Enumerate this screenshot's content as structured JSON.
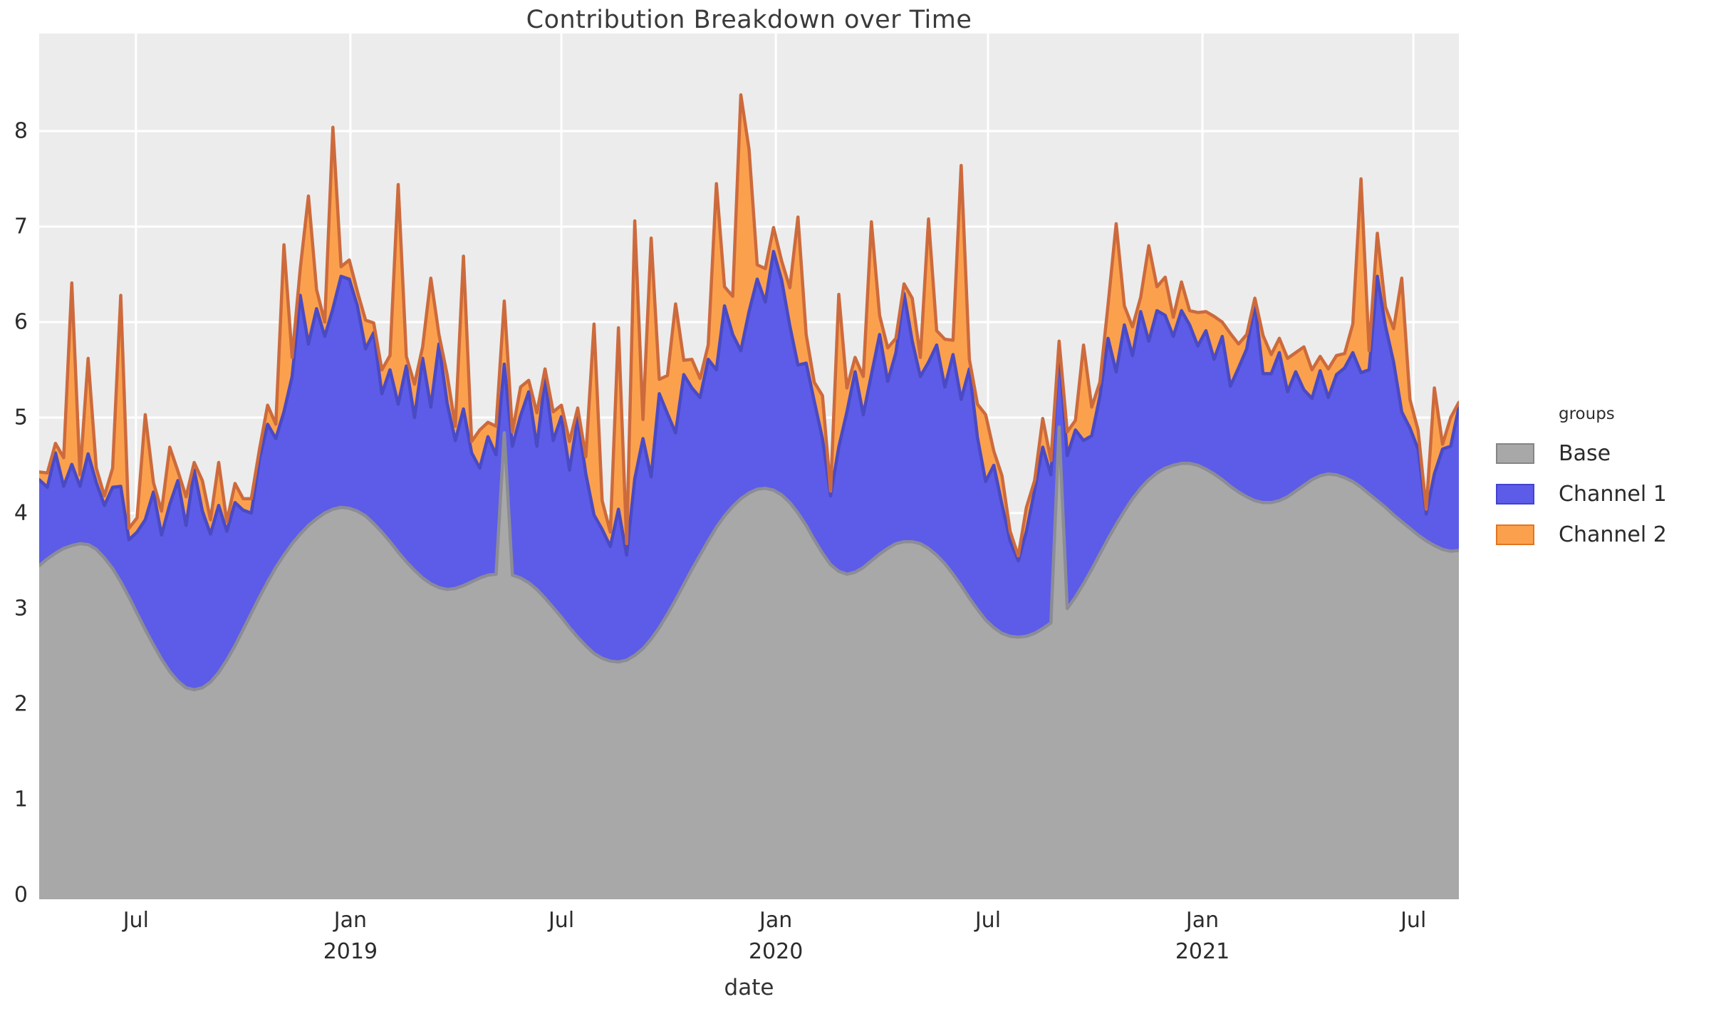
{
  "page": {
    "title": "Contribution Breakdown over Time",
    "x_axis_title": "date"
  },
  "legend": {
    "title": "groups",
    "items": [
      {
        "label": "Base",
        "fill": "#a8a8a8",
        "border": "#858585"
      },
      {
        "label": "Channel 1",
        "fill": "#5c5ce8",
        "border": "#4343cf"
      },
      {
        "label": "Channel 2",
        "fill": "#fba14e",
        "border": "#e2751f"
      }
    ]
  },
  "axes": {
    "y_ticks": [
      "0",
      "1",
      "2",
      "3",
      "4",
      "5",
      "6",
      "7",
      "8"
    ],
    "x_ticks": [
      {
        "label": "Jul",
        "year": "",
        "date": "2018-07-01"
      },
      {
        "label": "Jan",
        "year": "2019",
        "date": "2019-01-01"
      },
      {
        "label": "Jul",
        "year": "",
        "date": "2019-07-01"
      },
      {
        "label": "Jan",
        "year": "2020",
        "date": "2020-01-01"
      },
      {
        "label": "Jul",
        "year": "",
        "date": "2020-07-01"
      },
      {
        "label": "Jan",
        "year": "2021",
        "date": "2021-01-01"
      },
      {
        "label": "Jul",
        "year": "",
        "date": "2021-07-01"
      }
    ]
  },
  "style": {
    "panel_bg": "#ececec",
    "grid_color": "#ffffff",
    "tick_text_color": "#2c2c2c",
    "line_colors": {
      "base": "#8c8c96",
      "channel1": "#4a4ac4",
      "channel2": "#cd6a3c"
    }
  },
  "chart_data": {
    "type": "area",
    "stacked": true,
    "title": "Contribution Breakdown over Time",
    "xlabel": "date",
    "ylabel": "",
    "ylim": [
      0,
      9.0
    ],
    "grid": true,
    "legend_position": "right",
    "x_start": "2018-04-09",
    "x_freq_days": 7,
    "n_points": 175,
    "x_end": "2021-08-09",
    "series": [
      {
        "name": "Base",
        "fill": "#a8a8a8",
        "stroke": "#8c8c96",
        "values": [
          3.45,
          3.52,
          3.58,
          3.63,
          3.66,
          3.68,
          3.67,
          3.62,
          3.53,
          3.42,
          3.28,
          3.12,
          2.95,
          2.78,
          2.62,
          2.47,
          2.34,
          2.24,
          2.17,
          2.15,
          2.17,
          2.23,
          2.33,
          2.46,
          2.61,
          2.78,
          2.95,
          3.12,
          3.28,
          3.43,
          3.56,
          3.68,
          3.78,
          3.87,
          3.94,
          4.0,
          4.04,
          4.06,
          4.05,
          4.02,
          3.97,
          3.89,
          3.8,
          3.7,
          3.59,
          3.49,
          3.4,
          3.32,
          3.26,
          3.22,
          3.2,
          3.21,
          3.24,
          3.28,
          3.32,
          3.35,
          3.36,
          4.84,
          3.35,
          3.32,
          3.27,
          3.2,
          3.11,
          3.01,
          2.91,
          2.8,
          2.7,
          2.61,
          2.53,
          2.48,
          2.45,
          2.44,
          2.46,
          2.51,
          2.58,
          2.68,
          2.8,
          2.94,
          3.09,
          3.25,
          3.41,
          3.56,
          3.71,
          3.85,
          3.97,
          4.07,
          4.15,
          4.21,
          4.25,
          4.26,
          4.24,
          4.19,
          4.11,
          4.0,
          3.87,
          3.72,
          3.58,
          3.46,
          3.39,
          3.36,
          3.38,
          3.43,
          3.5,
          3.57,
          3.63,
          3.68,
          3.7,
          3.7,
          3.68,
          3.63,
          3.56,
          3.47,
          3.36,
          3.24,
          3.11,
          2.99,
          2.88,
          2.8,
          2.74,
          2.71,
          2.7,
          2.71,
          2.74,
          2.79,
          2.85,
          4.9,
          3.0,
          3.12,
          3.26,
          3.41,
          3.57,
          3.73,
          3.88,
          4.02,
          4.15,
          4.26,
          4.35,
          4.42,
          4.47,
          4.5,
          4.52,
          4.52,
          4.5,
          4.46,
          4.41,
          4.35,
          4.28,
          4.22,
          4.17,
          4.13,
          4.11,
          4.11,
          4.13,
          4.17,
          4.23,
          4.29,
          4.35,
          4.39,
          4.41,
          4.4,
          4.37,
          4.33,
          4.27,
          4.2,
          4.13,
          4.06,
          3.98,
          3.91,
          3.84,
          3.77,
          3.71,
          3.66,
          3.62,
          3.6,
          3.61
        ]
      },
      {
        "name": "Channel 1",
        "fill": "#5c5ce8",
        "stroke": "#4a4ac4",
        "values": [
          0.9,
          0.75,
          1.05,
          0.65,
          0.85,
          0.6,
          0.95,
          0.7,
          0.55,
          0.85,
          1.0,
          0.6,
          0.85,
          1.15,
          1.6,
          1.3,
          1.75,
          2.1,
          1.7,
          2.3,
          1.85,
          1.55,
          1.75,
          1.35,
          1.5,
          1.25,
          1.05,
          1.45,
          1.65,
          1.35,
          1.5,
          1.75,
          2.5,
          1.9,
          2.2,
          1.85,
          2.1,
          2.42,
          2.4,
          2.15,
          1.75,
          2.0,
          1.45,
          1.8,
          1.55,
          2.05,
          1.6,
          2.3,
          1.85,
          2.55,
          1.95,
          1.55,
          1.85,
          1.35,
          1.15,
          1.45,
          1.25,
          0.72,
          1.35,
          1.7,
          2.0,
          1.5,
          2.3,
          1.75,
          2.1,
          1.65,
          2.3,
          1.8,
          1.45,
          1.35,
          1.2,
          1.6,
          1.1,
          1.85,
          2.2,
          1.7,
          2.45,
          2.1,
          1.75,
          2.2,
          1.9,
          1.65,
          1.9,
          1.65,
          2.2,
          1.8,
          1.55,
          1.9,
          2.2,
          1.95,
          2.5,
          2.25,
          1.85,
          1.55,
          1.7,
          1.45,
          1.2,
          0.72,
          1.3,
          1.7,
          2.1,
          1.6,
          1.95,
          2.3,
          1.75,
          2.0,
          2.6,
          2.1,
          1.75,
          1.95,
          2.2,
          1.85,
          2.3,
          1.95,
          2.4,
          1.8,
          1.45,
          1.7,
          1.35,
          1.0,
          0.8,
          1.1,
          1.5,
          1.9,
          1.55,
          0.85,
          1.6,
          1.75,
          1.5,
          1.4,
          1.65,
          2.1,
          1.6,
          1.95,
          1.5,
          1.85,
          1.45,
          1.7,
          1.6,
          1.35,
          1.6,
          1.45,
          1.25,
          1.45,
          1.2,
          1.5,
          1.05,
          1.3,
          1.55,
          2.07,
          1.35,
          1.35,
          1.55,
          1.1,
          1.25,
          1.0,
          0.85,
          1.1,
          0.8,
          1.05,
          1.15,
          1.35,
          1.2,
          1.3,
          2.35,
          1.9,
          1.6,
          1.15,
          1.05,
          0.9,
          0.28,
          0.75,
          1.05,
          1.1,
          1.5
        ]
      },
      {
        "name": "Channel 2",
        "fill": "#fba14e",
        "stroke": "#cd6a3c",
        "values": [
          0.08,
          0.15,
          0.1,
          0.3,
          1.9,
          0.12,
          1.0,
          0.15,
          0.1,
          0.2,
          2.0,
          0.12,
          0.15,
          1.1,
          0.1,
          0.25,
          0.6,
          0.1,
          0.3,
          0.08,
          0.32,
          0.15,
          0.45,
          0.1,
          0.2,
          0.12,
          0.15,
          0.1,
          0.2,
          0.15,
          1.75,
          0.2,
          0.28,
          1.55,
          0.2,
          0.15,
          1.9,
          0.1,
          0.2,
          0.15,
          0.3,
          0.1,
          0.25,
          0.15,
          2.3,
          0.1,
          0.35,
          0.12,
          1.35,
          0.1,
          0.3,
          0.15,
          1.6,
          0.12,
          0.4,
          0.15,
          0.3,
          0.66,
          0.15,
          0.3,
          0.12,
          0.35,
          0.1,
          0.3,
          0.12,
          0.3,
          0.1,
          0.18,
          2.0,
          0.3,
          0.15,
          1.9,
          0.12,
          2.7,
          0.2,
          2.5,
          0.15,
          0.4,
          1.35,
          0.15,
          0.3,
          0.2,
          0.15,
          1.95,
          0.2,
          0.4,
          2.68,
          1.7,
          0.15,
          0.35,
          0.25,
          0.2,
          0.4,
          1.55,
          0.3,
          0.2,
          0.45,
          0.05,
          1.6,
          0.25,
          0.15,
          0.4,
          1.6,
          0.2,
          0.35,
          0.15,
          0.1,
          0.45,
          0.2,
          1.5,
          0.15,
          0.5,
          0.15,
          2.45,
          0.1,
          0.35,
          0.7,
          0.15,
          0.3,
          0.1,
          0.05,
          0.25,
          0.1,
          0.3,
          0.15,
          0.05,
          0.25,
          0.1,
          1.0,
          0.3,
          0.15,
          0.35,
          1.55,
          0.2,
          0.3,
          0.15,
          1.0,
          0.25,
          0.4,
          0.2,
          0.3,
          0.15,
          0.35,
          0.2,
          0.45,
          0.15,
          0.55,
          0.25,
          0.15,
          0.05,
          0.4,
          0.2,
          0.15,
          0.35,
          0.2,
          0.45,
          0.3,
          0.15,
          0.3,
          0.2,
          0.15,
          0.3,
          2.03,
          0.2,
          0.45,
          0.2,
          0.35,
          1.4,
          0.3,
          0.2,
          0.05,
          0.9,
          0.05,
          0.3,
          0.05
        ]
      }
    ]
  }
}
